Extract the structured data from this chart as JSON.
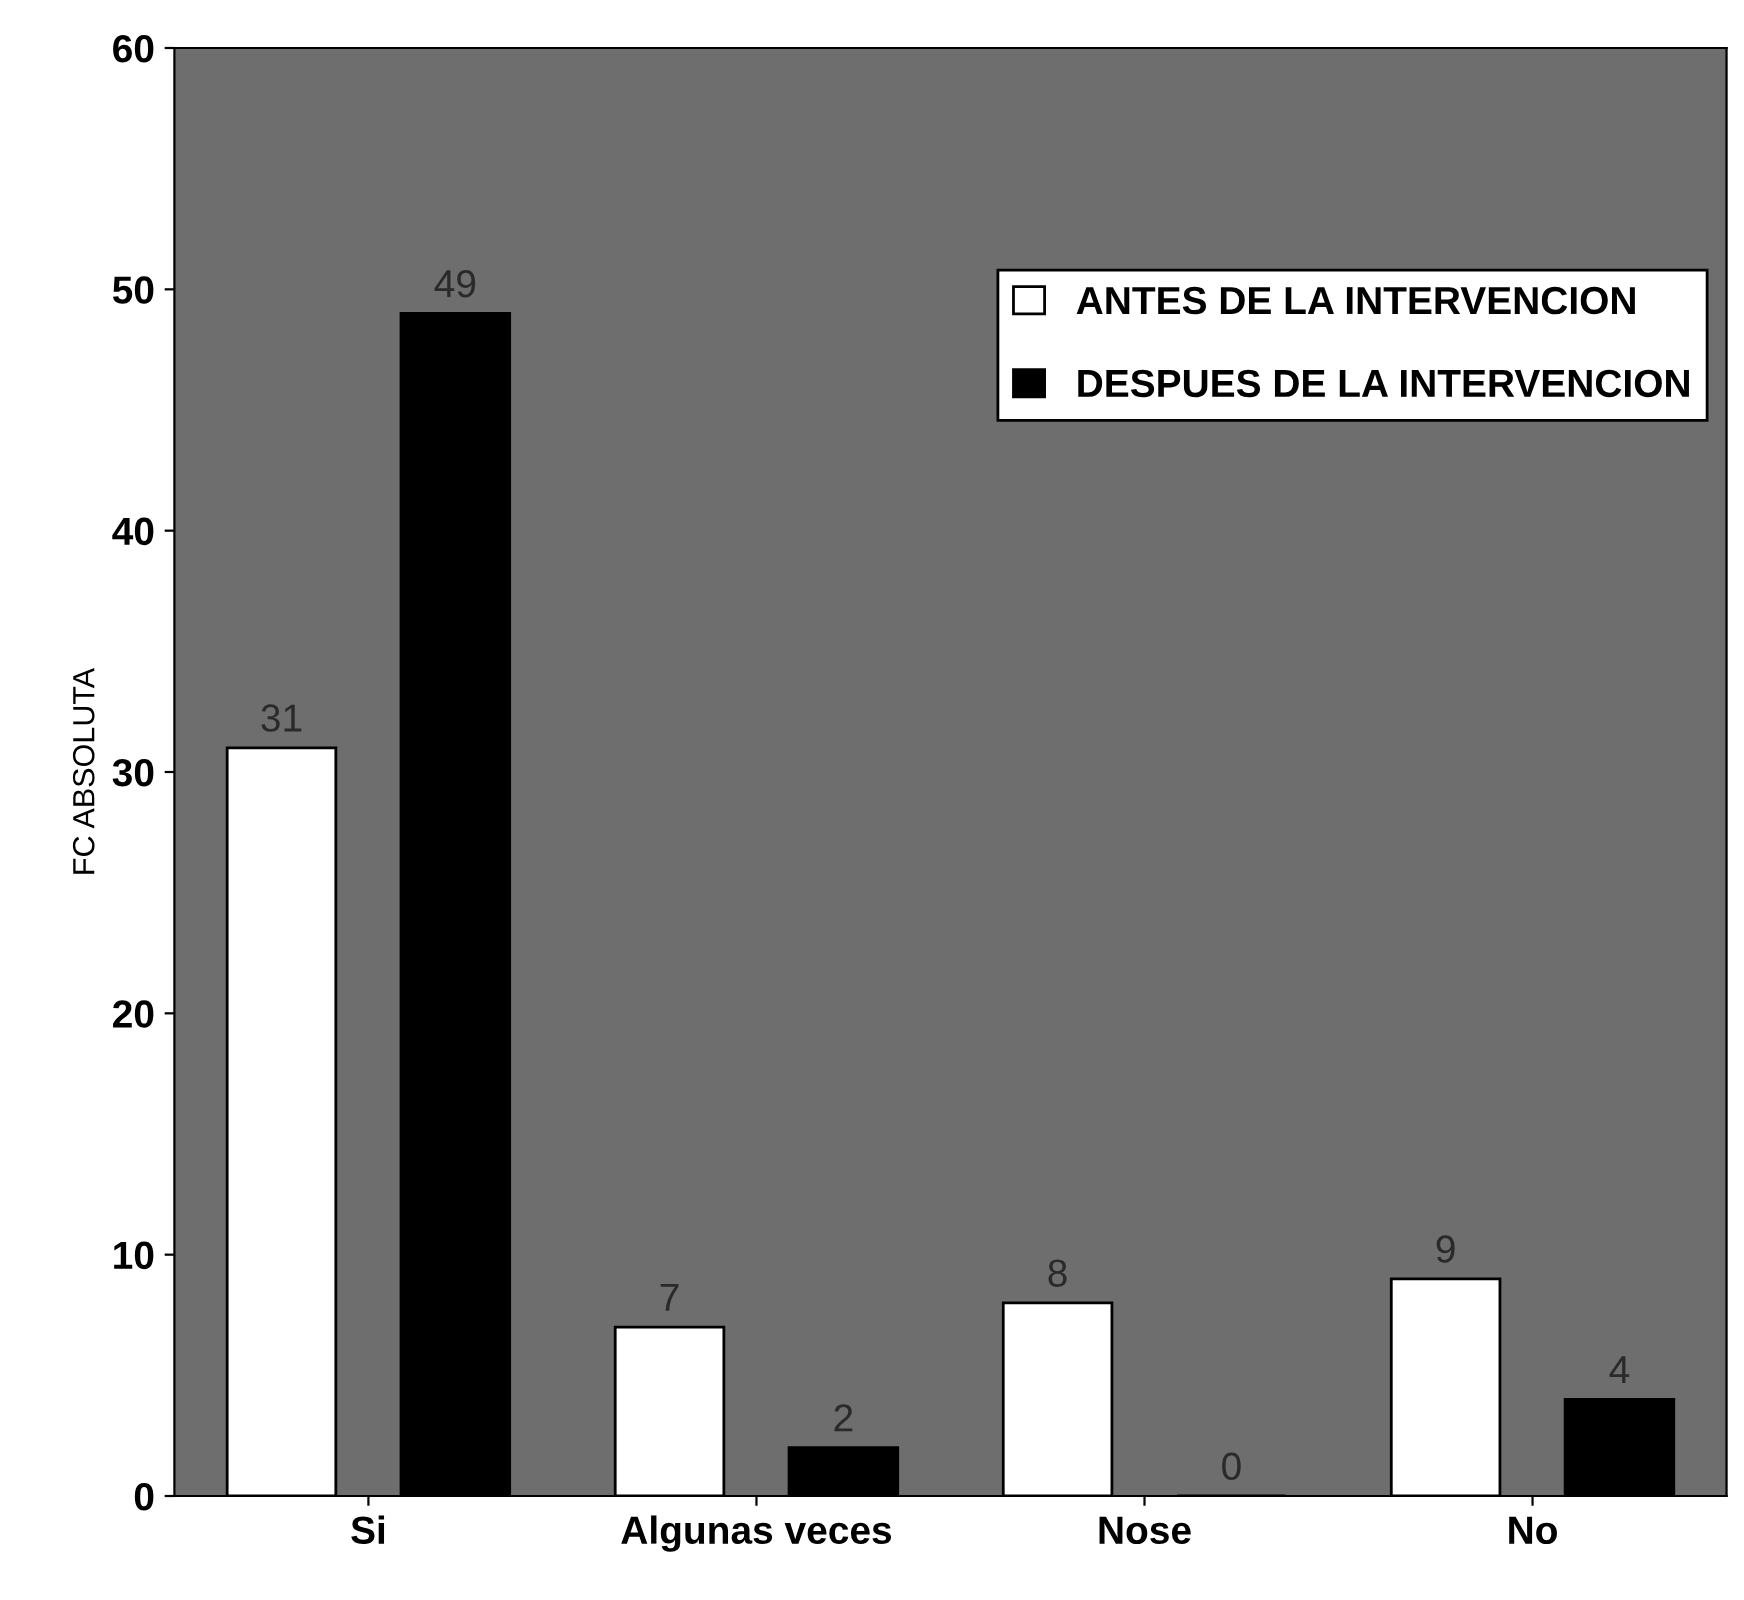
{
  "chart_data": {
    "type": "bar",
    "ylabel": "FC ABSOLUTA",
    "categories": [
      "Si",
      "Algunas veces",
      "Nose",
      "No"
    ],
    "series": [
      {
        "name": "ANTES DE LA INTERVENCION",
        "color": "#ffffff",
        "values": [
          31,
          7,
          8,
          9
        ]
      },
      {
        "name": "DESPUES DE LA INTERVENCION",
        "color": "#000000",
        "values": [
          49,
          2,
          0,
          4
        ]
      }
    ],
    "ylim": [
      0,
      60
    ],
    "yticks": [
      0,
      10,
      20,
      30,
      40,
      50,
      60
    ],
    "grid": false,
    "legend": "top right",
    "data_labels": true
  }
}
